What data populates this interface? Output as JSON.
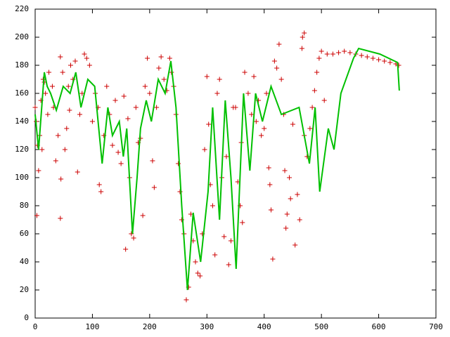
{
  "chart_data": {
    "type": "scatter",
    "xlim": [
      0,
      700
    ],
    "xticks": [
      0,
      100,
      200,
      300,
      400,
      500,
      600,
      700
    ],
    "ylim": [
      0,
      220
    ],
    "yticks": [
      0,
      20,
      40,
      60,
      80,
      100,
      120,
      140,
      160,
      180,
      200,
      220
    ],
    "series": [
      {
        "type": "scatter",
        "color": "#cc0000",
        "x": [
          0,
          2,
          3,
          4,
          6,
          8,
          10,
          12,
          14,
          16,
          18,
          22,
          24,
          30,
          32,
          36,
          40,
          44,
          44,
          45,
          48,
          52,
          55,
          58,
          60,
          62,
          66,
          70,
          74,
          78,
          82,
          86,
          90,
          95,
          100,
          105,
          110,
          112,
          115,
          120,
          125,
          130,
          135,
          140,
          145,
          150,
          155,
          158,
          162,
          165,
          168,
          172,
          176,
          180,
          184,
          188,
          192,
          196,
          200,
          205,
          208,
          212,
          216,
          220,
          225,
          230,
          235,
          238,
          242,
          246,
          250,
          253,
          256,
          260,
          264,
          268,
          272,
          276,
          280,
          284,
          288,
          292,
          296,
          300,
          303,
          306,
          310,
          314,
          318,
          322,
          326,
          330,
          334,
          338,
          342,
          346,
          350,
          354,
          358,
          360,
          362,
          366,
          372,
          378,
          382,
          386,
          390,
          395,
          400,
          404,
          408,
          410,
          412,
          415,
          418,
          422,
          426,
          430,
          434,
          436,
          438,
          440,
          444,
          446,
          450,
          454,
          458,
          462,
          466,
          467,
          470,
          470,
          475,
          480,
          484,
          488,
          492,
          496,
          500,
          505,
          510,
          520,
          530,
          540,
          550,
          560,
          570,
          580,
          590,
          600,
          610,
          620,
          630,
          635
        ],
        "values": [
          150,
          140,
          73,
          123,
          105,
          130,
          155,
          120,
          170,
          168,
          160,
          145,
          175,
          165,
          150,
          112,
          130,
          186,
          71,
          99,
          175,
          120,
          135,
          165,
          148,
          180,
          170,
          183,
          104,
          145,
          160,
          188,
          185,
          180,
          140,
          160,
          150,
          95,
          90,
          130,
          165,
          145,
          123,
          155,
          118,
          110,
          158,
          49,
          142,
          100,
          60,
          57,
          150,
          125,
          128,
          73,
          165,
          185,
          160,
          112,
          93,
          150,
          178,
          186,
          170,
          162,
          185,
          175,
          165,
          145,
          110,
          90,
          70,
          60,
          13,
          22,
          74,
          55,
          40,
          32,
          30,
          60,
          120,
          172,
          138,
          95,
          80,
          45,
          160,
          170,
          100,
          58,
          115,
          38,
          55,
          150,
          150,
          97,
          80,
          125,
          68,
          175,
          160,
          145,
          172,
          140,
          155,
          130,
          135,
          160,
          107,
          95,
          77,
          42,
          183,
          178,
          195,
          170,
          145,
          105,
          64,
          74,
          100,
          85,
          138,
          52,
          88,
          70,
          192,
          200,
          203,
          130,
          115,
          135,
          150,
          162,
          175,
          185,
          190,
          155,
          188,
          188,
          189,
          190,
          189,
          188,
          187,
          186,
          185,
          184,
          183,
          182,
          181,
          180
        ]
      },
      {
        "type": "line",
        "color": "#00c000",
        "x": [
          0,
          6,
          16,
          21,
          27,
          37,
          49,
          61,
          71,
          80,
          92,
          104,
          117,
          127,
          135,
          147,
          154,
          160,
          170,
          178,
          184,
          194,
          203,
          215,
          227,
          237,
          246,
          256,
          266,
          276,
          289,
          302,
          310,
          322,
          332,
          342,
          351,
          364,
          375,
          385,
          397,
          412,
          430,
          461,
          479,
          489,
          497,
          512,
          522,
          534,
          556,
          565,
          602,
          633,
          636
        ],
        "values": [
          145,
          120,
          175,
          165,
          160,
          148,
          165,
          160,
          175,
          150,
          170,
          165,
          110,
          150,
          130,
          140,
          115,
          135,
          60,
          100,
          135,
          155,
          140,
          170,
          160,
          183,
          150,
          80,
          20,
          75,
          40,
          90,
          150,
          70,
          155,
          100,
          35,
          160,
          105,
          160,
          140,
          165,
          145,
          150,
          110,
          150,
          90,
          135,
          120,
          160,
          185,
          192,
          188,
          182,
          162
        ]
      }
    ]
  }
}
